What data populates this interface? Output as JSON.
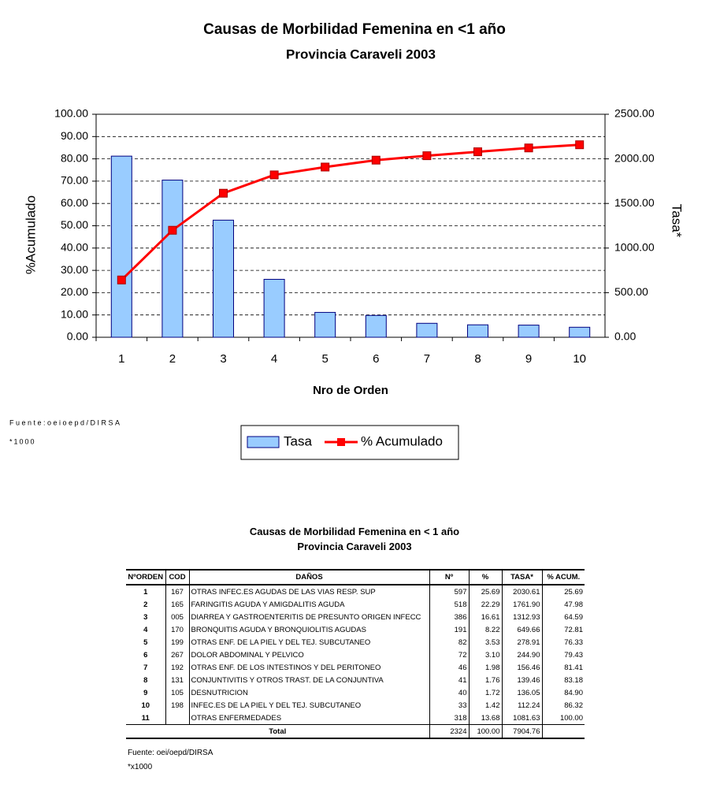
{
  "chart_data": {
    "type": "combo",
    "title": "Causas de Morbilidad Femenina en <1 año",
    "subtitle": "Provincia Caraveli 2003",
    "x_label": "Nro de Orden",
    "y_label": "%Acumulado",
    "y2_label": "Tasa*",
    "categories": [
      "1",
      "2",
      "3",
      "4",
      "5",
      "6",
      "7",
      "8",
      "9",
      "10"
    ],
    "series": [
      {
        "name": "Tasa",
        "type": "bar",
        "axis": "y2",
        "color": "#99ccff",
        "values": [
          2030.61,
          1761.9,
          1312.93,
          649.66,
          278.91,
          244.9,
          156.46,
          139.46,
          136.05,
          112.24
        ]
      },
      {
        "name": "% Acumulado",
        "type": "line",
        "axis": "y",
        "color": "#ff0000",
        "values": [
          25.69,
          47.98,
          64.59,
          72.81,
          76.33,
          79.43,
          81.41,
          83.18,
          84.9,
          86.32
        ]
      }
    ],
    "ylim": [
      0,
      100
    ],
    "yticks": [
      {
        "value": 0,
        "label": "0.00"
      },
      {
        "value": 10,
        "label": "10.00"
      },
      {
        "value": 20,
        "label": "20.00"
      },
      {
        "value": 30,
        "label": "30.00"
      },
      {
        "value": 40,
        "label": "40.00"
      },
      {
        "value": 50,
        "label": "50.00"
      },
      {
        "value": 60,
        "label": "60.00"
      },
      {
        "value": 70,
        "label": "70.00"
      },
      {
        "value": 80,
        "label": "80.00"
      },
      {
        "value": 90,
        "label": "90.00"
      },
      {
        "value": 100,
        "label": "100.00"
      }
    ],
    "y2lim": [
      0,
      2500
    ],
    "y2ticks": [
      {
        "value": 0,
        "label": "0.00"
      },
      {
        "value": 500,
        "label": "500.00"
      },
      {
        "value": 1000,
        "label": "1000.00"
      },
      {
        "value": 1500,
        "label": "1500.00"
      },
      {
        "value": 2000,
        "label": "2000.00"
      },
      {
        "value": 2500,
        "label": "2500.00"
      }
    ],
    "grid": true,
    "legend": "bottom"
  },
  "notes": {
    "source": "Fuente:oeioepd/DIRSA",
    "multiplier": "*1000"
  },
  "table": {
    "title": "Causas de Morbilidad Femenina en < 1 año",
    "subtitle": "Provincia Caraveli 2003",
    "header": [
      "NºORDEN",
      "COD",
      "DAÑOS",
      "Nº",
      "%",
      "TASA*",
      "% ACUM."
    ],
    "rows": [
      [
        "1",
        "167",
        "OTRAS INFEC.ES AGUDAS DE LAS VIAS RESP. SUP",
        "597",
        "25.69",
        "2030.61",
        "25.69"
      ],
      [
        "2",
        "165",
        "FARINGITIS AGUDA Y AMIGDALITIS AGUDA",
        "518",
        "22.29",
        "1761.90",
        "47.98"
      ],
      [
        "3",
        "005",
        "DIARREA Y GASTROENTERITIS DE PRESUNTO ORIGEN INFECC",
        "386",
        "16.61",
        "1312.93",
        "64.59"
      ],
      [
        "4",
        "170",
        "BRONQUITIS AGUDA Y BRONQUIOLITIS AGUDAS",
        "191",
        "8.22",
        "649.66",
        "72.81"
      ],
      [
        "5",
        "199",
        "OTRAS ENF. DE LA PIEL Y DEL TEJ. SUBCUTANEO",
        "82",
        "3.53",
        "278.91",
        "76.33"
      ],
      [
        "6",
        "267",
        "DOLOR ABDOMINAL Y PELVICO",
        "72",
        "3.10",
        "244.90",
        "79.43"
      ],
      [
        "7",
        "192",
        "OTRAS ENF. DE LOS INTESTINOS Y DEL PERITONEO",
        "46",
        "1.98",
        "156.46",
        "81.41"
      ],
      [
        "8",
        "131",
        "CONJUNTIVITIS Y OTROS TRAST. DE LA CONJUNTIVA",
        "41",
        "1.76",
        "139.46",
        "83.18"
      ],
      [
        "9",
        "105",
        "DESNUTRICION",
        "40",
        "1.72",
        "136.05",
        "84.90"
      ],
      [
        "10",
        "198",
        "INFEC.ES DE LA PIEL Y DEL TEJ. SUBCUTANEO",
        "33",
        "1.42",
        "112.24",
        "86.32"
      ],
      [
        "11",
        null,
        "OTRAS ENFERMEDADES",
        "318",
        "13.68",
        "1081.63",
        "100.00"
      ]
    ],
    "total": [
      "Total",
      "2324",
      "100.00",
      "7904.76"
    ],
    "source": "Fuente: oei/oepd/DIRSA",
    "note": "*x1000"
  }
}
